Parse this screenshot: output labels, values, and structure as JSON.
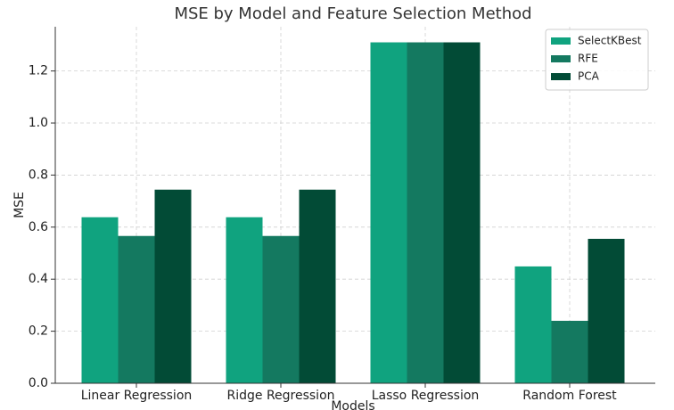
{
  "chart_data": {
    "type": "bar",
    "title": "MSE by Model and Feature Selection Method",
    "x_label": "Models",
    "y_label": "MSE",
    "categories": [
      "Linear Regression",
      "Ridge Regression",
      "Lasso Regression",
      "Random Forest"
    ],
    "series": [
      {
        "name": "SelectKBest",
        "color": "#10a37f",
        "values": [
          0.638,
          0.638,
          1.31,
          0.449
        ]
      },
      {
        "name": "RFE",
        "color": "#147960",
        "values": [
          0.566,
          0.566,
          1.31,
          0.24
        ]
      },
      {
        "name": "PCA",
        "color": "#024b36",
        "values": [
          0.744,
          0.744,
          1.31,
          0.555
        ]
      }
    ],
    "ylim": [
      0,
      1.37
    ],
    "yticks": [
      {
        "value": 0,
        "label": "0.0"
      },
      0.2,
      0.4,
      0.6,
      0.8,
      {
        "value": 1,
        "label": "1.0"
      },
      1.2
    ],
    "grid": true,
    "legend": "upper right"
  }
}
